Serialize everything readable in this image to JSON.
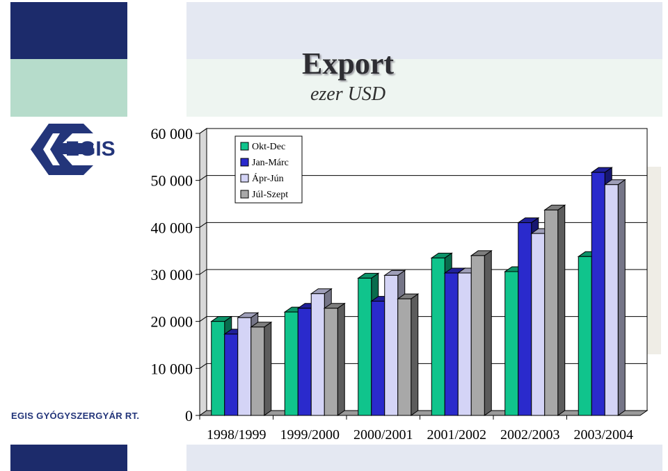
{
  "header": {
    "title": "Export",
    "subtitle": "ezer USD"
  },
  "branding": {
    "logo_text": "EGIS",
    "company_name": "EGIS GYÓGYSZERGYÁR RT."
  },
  "colors": {
    "primary": "#1c2b6b",
    "accent_green": "#b6dccb"
  },
  "chart_data": {
    "type": "bar",
    "categories": [
      "1998/1999",
      "1999/2000",
      "2000/2001",
      "2001/2002",
      "2002/2003",
      "2003/2004"
    ],
    "series": [
      {
        "name": "Okt-Dec",
        "color": "#10c48c",
        "values": [
          20000,
          22000,
          29200,
          33500,
          30600,
          33800
        ]
      },
      {
        "name": "Jan-Márc",
        "color": "#2a2acc",
        "values": [
          17300,
          22800,
          24300,
          30300,
          41000,
          51700
        ]
      },
      {
        "name": "Ápr-Jún",
        "color": "#d4d4f6",
        "values": [
          20800,
          25900,
          29800,
          30300,
          38700,
          49100
        ]
      },
      {
        "name": "Júl-Szept",
        "color": "#a8a8a8",
        "values": [
          18800,
          22800,
          24800,
          34000,
          43700,
          null
        ]
      }
    ],
    "ylim": [
      0,
      60000
    ],
    "yticks": [
      "60 000",
      "50 000",
      "40 000",
      "30 000",
      "20 000",
      "10 000",
      "0"
    ],
    "ytick_values": [
      60000,
      50000,
      40000,
      30000,
      20000,
      10000,
      0
    ],
    "grid": true,
    "legend_position": "top-left"
  }
}
